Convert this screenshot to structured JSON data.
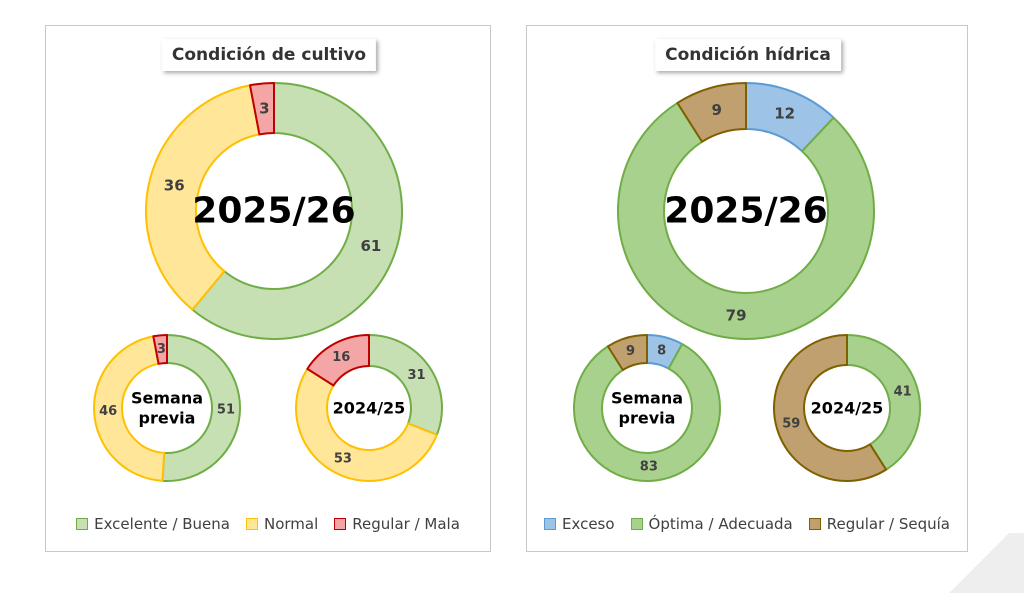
{
  "panels": [
    {
      "title": "Condición de cultivo",
      "legend": [
        {
          "label": "Excelente / Buena",
          "fill": "#c6e0b4",
          "stroke": "#70ad47"
        },
        {
          "label": "Normal",
          "fill": "#ffe699",
          "stroke": "#ffc000"
        },
        {
          "label": "Regular / Mala",
          "fill": "#f4a6a6",
          "stroke": "#c00000"
        }
      ]
    },
    {
      "title": "Condición hídrica",
      "legend": [
        {
          "label": "Exceso",
          "fill": "#9dc3e6",
          "stroke": "#5b9bd5"
        },
        {
          "label": "Óptima / Adecuada",
          "fill": "#a9d18e",
          "stroke": "#70ad47"
        },
        {
          "label": "Regular / Sequía",
          "fill": "#bfa06e",
          "stroke": "#7f6000"
        }
      ]
    }
  ],
  "chart_data": [
    {
      "type": "donut",
      "panel": "Condición de cultivo",
      "center_label": "2025/26",
      "series": [
        {
          "name": "Excelente / Buena",
          "value": 61,
          "fill": "#c6e0b4",
          "stroke": "#70ad47"
        },
        {
          "name": "Normal",
          "value": 36,
          "fill": "#ffe699",
          "stroke": "#ffc000"
        },
        {
          "name": "Regular / Mala",
          "value": 3,
          "fill": "#f4a6a6",
          "stroke": "#c00000"
        }
      ]
    },
    {
      "type": "donut",
      "panel": "Condición de cultivo",
      "center_label": "Semana previa",
      "series": [
        {
          "name": "Excelente / Buena",
          "value": 51,
          "fill": "#c6e0b4",
          "stroke": "#70ad47"
        },
        {
          "name": "Normal",
          "value": 46,
          "fill": "#ffe699",
          "stroke": "#ffc000"
        },
        {
          "name": "Regular / Mala",
          "value": 3,
          "fill": "#f4a6a6",
          "stroke": "#c00000"
        }
      ]
    },
    {
      "type": "donut",
      "panel": "Condición de cultivo",
      "center_label": "2024/25",
      "series": [
        {
          "name": "Excelente / Buena",
          "value": 31,
          "fill": "#c6e0b4",
          "stroke": "#70ad47"
        },
        {
          "name": "Normal",
          "value": 53,
          "fill": "#ffe699",
          "stroke": "#ffc000"
        },
        {
          "name": "Regular / Mala",
          "value": 16,
          "fill": "#f4a6a6",
          "stroke": "#c00000"
        }
      ]
    },
    {
      "type": "donut",
      "panel": "Condición hídrica",
      "center_label": "2025/26",
      "series": [
        {
          "name": "Exceso",
          "value": 12,
          "fill": "#9dc3e6",
          "stroke": "#5b9bd5"
        },
        {
          "name": "Óptima / Adecuada",
          "value": 79,
          "fill": "#a9d18e",
          "stroke": "#70ad47"
        },
        {
          "name": "Regular / Sequía",
          "value": 9,
          "fill": "#bfa06e",
          "stroke": "#7f6000"
        }
      ]
    },
    {
      "type": "donut",
      "panel": "Condición hídrica",
      "center_label": "Semana previa",
      "series": [
        {
          "name": "Exceso",
          "value": 8,
          "fill": "#9dc3e6",
          "stroke": "#5b9bd5"
        },
        {
          "name": "Óptima / Adecuada",
          "value": 83,
          "fill": "#a9d18e",
          "stroke": "#70ad47"
        },
        {
          "name": "Regular / Sequía",
          "value": 9,
          "fill": "#bfa06e",
          "stroke": "#7f6000"
        }
      ]
    },
    {
      "type": "donut",
      "panel": "Condición hídrica",
      "center_label": "2024/25",
      "series": [
        {
          "name": "Exceso",
          "value": 0,
          "fill": "#9dc3e6",
          "stroke": "#5b9bd5"
        },
        {
          "name": "Óptima / Adecuada",
          "value": 41,
          "fill": "#a9d18e",
          "stroke": "#70ad47"
        },
        {
          "name": "Regular / Sequía",
          "value": 59,
          "fill": "#bfa06e",
          "stroke": "#7f6000"
        }
      ]
    }
  ]
}
